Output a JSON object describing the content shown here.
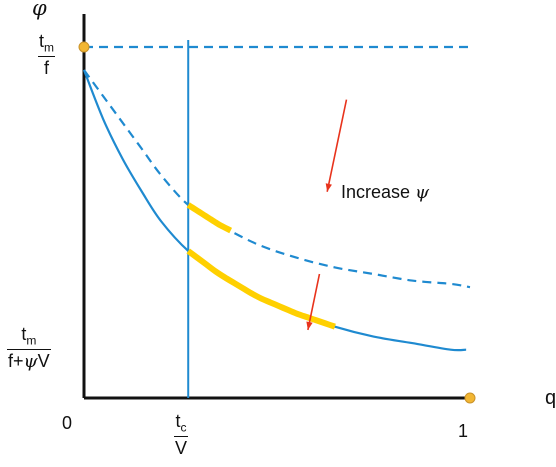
{
  "chart_data": {
    "type": "line",
    "title": "",
    "xlabel": "q",
    "ylabel": "φ",
    "xlim": [
      0,
      1
    ],
    "x_ticks": [
      {
        "label": "0",
        "value": 0
      },
      {
        "label": "1",
        "value": 1
      }
    ],
    "x_marker": {
      "numerator": "t",
      "numerator_sub": "c",
      "denominator": "V",
      "value": 0.27
    },
    "y_ticks": [
      {
        "numerator": "t",
        "numerator_sub": "m",
        "denominator": "f",
        "value": 1.0
      },
      {
        "numerator": "t",
        "numerator_sub": "m",
        "denominator": "f+ψV",
        "value": 0.0
      }
    ],
    "series": [
      {
        "style": "dashed",
        "color": "#1f8ad0",
        "x": [
          0,
          0.05,
          0.1,
          0.15,
          0.2,
          0.27,
          0.35,
          0.45,
          0.55,
          0.65,
          0.75,
          0.85,
          0.95,
          1.0
        ],
        "y": [
          0.93,
          0.85,
          0.77,
          0.69,
          0.61,
          0.52,
          0.46,
          0.4,
          0.36,
          0.33,
          0.31,
          0.29,
          0.28,
          0.27
        ]
      },
      {
        "style": "solid",
        "color": "#1f8ad0",
        "x": [
          0,
          0.05,
          0.1,
          0.15,
          0.2,
          0.27,
          0.35,
          0.45,
          0.55,
          0.65,
          0.75,
          0.85,
          0.95,
          0.99
        ],
        "y": [
          0.93,
          0.78,
          0.66,
          0.56,
          0.47,
          0.38,
          0.31,
          0.24,
          0.19,
          0.15,
          0.12,
          0.1,
          0.08,
          0.08
        ]
      },
      {
        "style": "dashed",
        "color": "#1f8ad0",
        "x": [
          0,
          1.0
        ],
        "y": [
          1.0,
          1.0
        ]
      }
    ],
    "highlights": [
      {
        "color": "#ffd000",
        "x": [
          0.27,
          0.38
        ],
        "on_series": 0
      },
      {
        "color": "#ffd000",
        "x": [
          0.27,
          0.65
        ],
        "on_series": 1
      }
    ],
    "arrows": [
      {
        "color": "#e8331c",
        "from": [
          0.68,
          0.84
        ],
        "to": [
          0.63,
          0.56
        ]
      },
      {
        "color": "#e8331c",
        "from": [
          0.61,
          0.31
        ],
        "to": [
          0.58,
          0.14
        ]
      }
    ],
    "points": [
      {
        "color": "#f2b632",
        "x": 0,
        "y": 1.0
      },
      {
        "color": "#f2b632",
        "x": 1.0,
        "y": 0
      }
    ],
    "annotation": {
      "text": "Increase ",
      "symbol": "ψ"
    }
  }
}
